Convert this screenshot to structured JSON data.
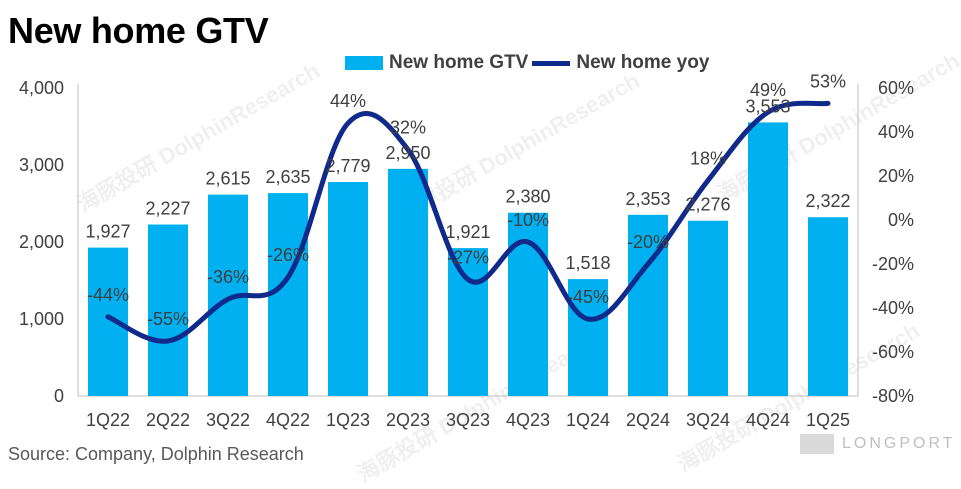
{
  "title": "New home GTV",
  "source": "Source: Company, Dolphin Research",
  "watermark": "海豚投研 DolphinResearch",
  "logo_text": "LONGPORT",
  "colors": {
    "bar": "#00b0f0",
    "line": "#0f2a8a",
    "axis": "#404040",
    "grid": "#d9d9d9"
  },
  "chart_data": {
    "type": "bar",
    "categories": [
      "1Q22",
      "2Q22",
      "3Q22",
      "4Q22",
      "1Q23",
      "2Q23",
      "3Q23",
      "4Q23",
      "1Q24",
      "2Q24",
      "3Q24",
      "4Q24",
      "1Q25"
    ],
    "series": [
      {
        "name": "New home GTV",
        "type": "bar",
        "axis": "left",
        "values": [
          1927,
          2227,
          2615,
          2635,
          2779,
          2950,
          1921,
          2380,
          1518,
          2353,
          2276,
          3553,
          2322
        ],
        "labels": [
          "1,927",
          "2,227",
          "2,615",
          "2,635",
          "2,779",
          "2,950",
          "1,921",
          "2,380",
          "1,518",
          "2,353",
          "2,276",
          "3,553",
          "2,322"
        ]
      },
      {
        "name": "New home yoy",
        "type": "line",
        "axis": "right",
        "values": [
          -44,
          -55,
          -36,
          -26,
          44,
          32,
          -27,
          -10,
          -45,
          -20,
          18,
          49,
          53
        ],
        "labels": [
          "-44%",
          "-55%",
          "-36%",
          "-26%",
          "44%",
          "32%",
          "-27%",
          "-10%",
          "-45%",
          "-20%",
          "18%",
          "49%",
          "53%"
        ]
      }
    ],
    "y_left": {
      "ylim": [
        0,
        4000
      ],
      "ticks": [
        "0",
        "1,000",
        "2,000",
        "3,000",
        "4,000"
      ],
      "tick_values": [
        0,
        1000,
        2000,
        3000,
        4000
      ]
    },
    "y_right": {
      "ylim": [
        -80,
        60
      ],
      "ticks": [
        "-80%",
        "-60%",
        "-40%",
        "-20%",
        "0%",
        "20%",
        "40%",
        "60%"
      ],
      "tick_values": [
        -80,
        -60,
        -40,
        -20,
        0,
        20,
        40,
        60
      ]
    },
    "grid": false,
    "legend_position": "top"
  }
}
